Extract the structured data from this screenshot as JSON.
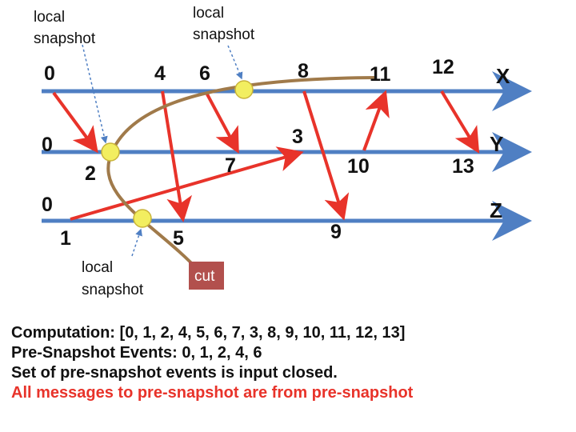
{
  "colors": {
    "timeline": "#4f7fc3",
    "message": "#e8332a",
    "cut": "#a07a4a",
    "snapshot_marker": "#f2ee60",
    "cut_box": "#b2504d",
    "alert_text": "#e8332a"
  },
  "snapshot_labels": [
    {
      "line1": "local",
      "line2": "snapshot"
    },
    {
      "line1": "local",
      "line2": "snapshot"
    },
    {
      "line1": "local",
      "line2": "snapshot"
    }
  ],
  "processes": [
    "X",
    "Y",
    "Z"
  ],
  "events": {
    "x": [
      "0",
      "4",
      "6",
      "8",
      "11",
      "12"
    ],
    "y": [
      "0",
      "2",
      "7",
      "3",
      "10",
      "13"
    ],
    "z": [
      "0",
      "1",
      "5",
      "9"
    ]
  },
  "cut_label": "cut",
  "notes": {
    "computation": "Computation: [0, 1, 2, 4, 5, 6, 7, 3, 8, 9, 10, 11, 12, 13]",
    "pre_snapshot": "Pre-Snapshot Events: 0, 1, 2, 4, 6",
    "input_closed": "Set of pre-snapshot events is input closed.",
    "rule": "All messages to pre-snapshot are from pre-snapshot"
  }
}
